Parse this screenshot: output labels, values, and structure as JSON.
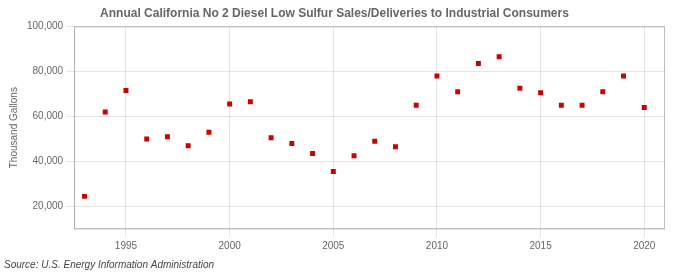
{
  "chart_data": {
    "type": "scatter",
    "title": "Annual California No 2 Diesel Low Sulfur Sales/Deliveries to Industrial Consumers",
    "ylabel": "Thousand Gallons",
    "annotation": "Source: U.S. Energy Information Administration",
    "x": [
      1993,
      1994,
      1995,
      1996,
      1997,
      1998,
      1999,
      2000,
      2001,
      2002,
      2003,
      2004,
      2005,
      2006,
      2007,
      2008,
      2009,
      2010,
      2011,
      2012,
      2013,
      2014,
      2015,
      2016,
      2017,
      2018,
      2019,
      2020
    ],
    "values": [
      24500,
      62000,
      71500,
      50000,
      51000,
      47000,
      53000,
      65500,
      66500,
      50500,
      48000,
      43500,
      35500,
      42500,
      49000,
      46500,
      65000,
      78000,
      71000,
      83500,
      86500,
      72500,
      70500,
      65000,
      65000,
      71000,
      78000,
      64000
    ],
    "color": "#cc0000",
    "marker": "square",
    "xlim": [
      1992.5,
      2021
    ],
    "xticks": [
      1995,
      2000,
      2005,
      2010,
      2015,
      2020
    ],
    "ylim": [
      10000,
      100000
    ],
    "yticks": [
      {
        "value": 20000,
        "label": "20,000"
      },
      {
        "value": 40000,
        "label": "40,000"
      },
      {
        "value": 60000,
        "label": "60,000"
      },
      {
        "value": 80000,
        "label": "80,000"
      },
      {
        "value": 100000,
        "label": "100,000"
      }
    ],
    "grid": true
  }
}
